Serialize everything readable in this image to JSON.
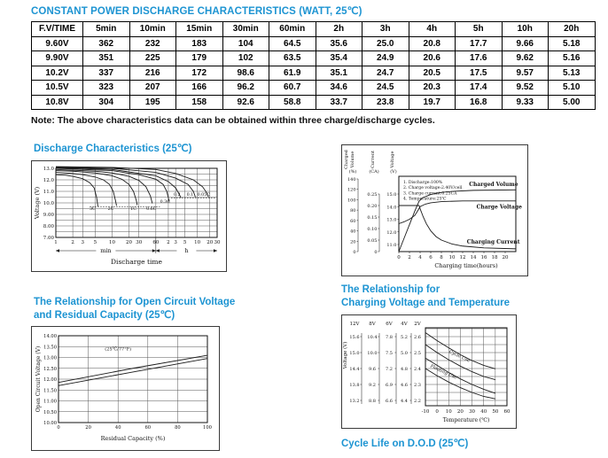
{
  "page": {
    "title": "CONSTANT POWER DISCHARGE CHARACTERISTICS (WATT, 25℃)",
    "note": "Note: The above characteristics data can be obtained within three charge/discharge cycles.",
    "accent_color": "#1d94d2"
  },
  "table": {
    "headers": [
      "F.V/TIME",
      "5min",
      "10min",
      "15min",
      "30min",
      "60min",
      "2h",
      "3h",
      "4h",
      "5h",
      "10h",
      "20h"
    ],
    "rows": [
      [
        "9.60V",
        "362",
        "232",
        "183",
        "104",
        "64.5",
        "35.6",
        "25.0",
        "20.8",
        "17.7",
        "9.66",
        "5.18"
      ],
      [
        "9.90V",
        "351",
        "225",
        "179",
        "102",
        "63.5",
        "35.4",
        "24.9",
        "20.6",
        "17.6",
        "9.62",
        "5.16"
      ],
      [
        "10.2V",
        "337",
        "216",
        "172",
        "98.6",
        "61.9",
        "35.1",
        "24.7",
        "20.5",
        "17.5",
        "9.57",
        "5.13"
      ],
      [
        "10.5V",
        "323",
        "207",
        "166",
        "96.2",
        "60.7",
        "34.6",
        "24.5",
        "20.3",
        "17.4",
        "9.52",
        "5.10"
      ],
      [
        "10.8V",
        "304",
        "195",
        "158",
        "92.6",
        "58.8",
        "33.7",
        "23.8",
        "19.7",
        "16.8",
        "9.33",
        "5.00"
      ]
    ]
  },
  "sections": {
    "discharge": {
      "title": "Discharge Characteristics (25℃)"
    },
    "ocv": {
      "title_line1": "The Relationship for Open Circuit Voltage",
      "title_line2": "and Residual Capacity (25℃)"
    },
    "charging_temp": {
      "title_line1": "The Relationship for",
      "title_line2": "Charging Voltage and Temperature"
    },
    "cycle_life": {
      "title": "Cycle Life on D.O.D (25℃)"
    }
  },
  "chart_data": [
    {
      "id": "discharge",
      "type": "line",
      "title": "Discharge Characteristics (25℃)",
      "xlabel": "Discharge time",
      "ylabel": "Voltage (V)",
      "x_unit_groups": [
        "min",
        "h"
      ],
      "y_ticks": [
        {
          "v": 13,
          "label": "13.0"
        },
        {
          "v": 12,
          "label": "12.0"
        },
        {
          "v": 11,
          "label": "11.0"
        },
        {
          "v": 10,
          "label": "10.0"
        },
        {
          "v": 9,
          "label": "9.00"
        },
        {
          "v": 8,
          "label": "8.00"
        },
        {
          "v": 7,
          "label": "7.00"
        }
      ],
      "x_ticks_min": [
        1,
        2,
        3,
        5,
        10,
        20,
        30,
        60
      ],
      "x_ticks_h": [
        2,
        3,
        5,
        10,
        20,
        30
      ],
      "ylim": [
        7,
        13.5
      ],
      "series": [
        {
          "name": "3C",
          "label_at": [
            4.5,
            9.38
          ],
          "points": [
            [
              1,
              12.45
            ],
            [
              1.5,
              12.4
            ],
            [
              2,
              12.3
            ],
            [
              3,
              12.1
            ],
            [
              4,
              11.75
            ],
            [
              4.8,
              11.3
            ],
            [
              5.3,
              10.5
            ],
            [
              5.6,
              9.7
            ]
          ]
        },
        {
          "name": "2C",
          "label_at": [
            9.5,
            9.38
          ],
          "points": [
            [
              1,
              12.65
            ],
            [
              2,
              12.55
            ],
            [
              3,
              12.45
            ],
            [
              5,
              12.25
            ],
            [
              7,
              12.0
            ],
            [
              9,
              11.6
            ],
            [
              10.5,
              11.0
            ],
            [
              11.5,
              10.2
            ],
            [
              12,
              9.75
            ]
          ]
        },
        {
          "name": "1C",
          "label_at": [
            24,
            9.38
          ],
          "points": [
            [
              1,
              12.8
            ],
            [
              2,
              12.75
            ],
            [
              5,
              12.6
            ],
            [
              10,
              12.35
            ],
            [
              15,
              12.05
            ],
            [
              20,
              11.6
            ],
            [
              24,
              11.0
            ],
            [
              27,
              10.2
            ],
            [
              28,
              9.8
            ]
          ]
        },
        {
          "name": "0.6C",
          "label_at": [
            50,
            9.38
          ],
          "points": [
            [
              1,
              12.9
            ],
            [
              5,
              12.75
            ],
            [
              10,
              12.6
            ],
            [
              20,
              12.3
            ],
            [
              30,
              11.95
            ],
            [
              40,
              11.4
            ],
            [
              48,
              10.6
            ],
            [
              52,
              9.95
            ]
          ]
        },
        {
          "name": "0.3C",
          "label_at": [
            100,
            10.0
          ],
          "points": [
            [
              1,
              13.0
            ],
            [
              10,
              12.8
            ],
            [
              30,
              12.45
            ],
            [
              60,
              12.05
            ],
            [
              90,
              11.6
            ],
            [
              110,
              11.0
            ],
            [
              120,
              10.45
            ],
            [
              126,
              10.1
            ]
          ]
        },
        {
          "name": "0.2",
          "label_at": [
            195,
            10.62
          ],
          "points": [
            [
              1,
              13.05
            ],
            [
              10,
              12.9
            ],
            [
              60,
              12.35
            ],
            [
              120,
              11.85
            ],
            [
              180,
              11.3
            ],
            [
              220,
              10.75
            ],
            [
              240,
              10.45
            ]
          ]
        },
        {
          "name": "0.1",
          "label_at": [
            400,
            10.62
          ],
          "points": [
            [
              1,
              13.1
            ],
            [
              10,
              13.0
            ],
            [
              60,
              12.65
            ],
            [
              180,
              12.15
            ],
            [
              360,
              11.6
            ],
            [
              480,
              11.0
            ],
            [
              540,
              10.5
            ]
          ]
        },
        {
          "name": "0.05C",
          "label_at": [
            850,
            10.62
          ],
          "points": [
            [
              1,
              13.15
            ],
            [
              10,
              13.08
            ],
            [
              60,
              12.9
            ],
            [
              180,
              12.55
            ],
            [
              480,
              12.0
            ],
            [
              800,
              11.4
            ],
            [
              1000,
              10.9
            ],
            [
              1120,
              10.5
            ]
          ]
        }
      ],
      "guides": [
        {
          "v": 9.65,
          "from": 4,
          "to": 75
        },
        {
          "v": 10.42,
          "from": 140,
          "to": 1600
        }
      ]
    },
    {
      "id": "charge",
      "type": "line",
      "xlabel": "Charging time(hours)",
      "x_ticks": [
        0,
        2,
        4,
        6,
        8,
        10,
        12,
        14,
        16,
        18,
        20
      ],
      "xlim": [
        0,
        22
      ],
      "axes": [
        {
          "key": "volume",
          "word": "Charged Volume",
          "unit": "(%)",
          "ticks": [
            0,
            20,
            40,
            60,
            80,
            100,
            120,
            140
          ],
          "tick_labels": [
            "0",
            "20",
            "40",
            "60",
            "80",
            "100",
            "120",
            "140"
          ]
        },
        {
          "key": "current",
          "word": "Current",
          "unit": "(CA)",
          "ticks": [
            0,
            0.05,
            0.1,
            0.15,
            0.2,
            0.25
          ],
          "tick_labels": [
            "0",
            "0.05",
            "0.10",
            "0.15",
            "0.20",
            "0.25"
          ]
        },
        {
          "key": "voltage",
          "word": "Voltage",
          "unit": "(V)",
          "ticks": [
            11,
            12,
            13,
            14,
            15
          ],
          "tick_labels": [
            "11.0",
            "12.0",
            "13.0",
            "14.0",
            "15.0"
          ]
        }
      ],
      "notes": [
        "1. Discharge:100%",
        "2. Charge voltage:2.40V/cell",
        "3. Charge current:0.25CA",
        "4. Temperature:25℃"
      ],
      "series": [
        {
          "name": "Charged Volume",
          "axis": "volume",
          "label_at": [
            13.2,
            126
          ],
          "points": [
            [
              0,
              0
            ],
            [
              1,
              26
            ],
            [
              2,
              52
            ],
            [
              3,
              78
            ],
            [
              3.8,
              97
            ],
            [
              4.5,
              104
            ],
            [
              6,
              110
            ],
            [
              8,
              114
            ],
            [
              10,
              116
            ],
            [
              14,
              118
            ],
            [
              22,
              119
            ]
          ]
        },
        {
          "name": "Charge Voltage",
          "axis": "voltage",
          "label_at": [
            14.6,
            13.85
          ],
          "points": [
            [
              0,
              12.65
            ],
            [
              1,
              12.8
            ],
            [
              2,
              13.0
            ],
            [
              3,
              13.3
            ],
            [
              3.6,
              13.7
            ],
            [
              4,
              14.0
            ],
            [
              5,
              14.2
            ],
            [
              6,
              14.3
            ],
            [
              8,
              14.4
            ],
            [
              12,
              14.45
            ],
            [
              22,
              14.45
            ]
          ]
        },
        {
          "name": "Charging Current",
          "axis": "current",
          "label_at": [
            12.8,
            0.035
          ],
          "points": [
            [
              0,
              0.2
            ],
            [
              3.8,
              0.2
            ],
            [
              4.1,
              0.18
            ],
            [
              4.6,
              0.15
            ],
            [
              5.2,
              0.12
            ],
            [
              6,
              0.09
            ],
            [
              7,
              0.065
            ],
            [
              8,
              0.05
            ],
            [
              10,
              0.033
            ],
            [
              12,
              0.024
            ],
            [
              16,
              0.016
            ],
            [
              22,
              0.012
            ]
          ]
        }
      ]
    },
    {
      "id": "ocv",
      "type": "line",
      "xlabel": "Residual Capacity (%)",
      "ylabel": "Open Circuit Voltage (V)",
      "annotation": "(25℃/77°F)",
      "x_ticks": [
        0,
        20,
        40,
        60,
        80,
        100
      ],
      "y_ticks": [
        {
          "v": 14,
          "label": "14.00"
        },
        {
          "v": 13.5,
          "label": "13.50"
        },
        {
          "v": 13,
          "label": "13.00"
        },
        {
          "v": 12.5,
          "label": "12.50"
        },
        {
          "v": 12,
          "label": "12.00"
        },
        {
          "v": 11.5,
          "label": "11.50"
        },
        {
          "v": 11,
          "label": "11.00"
        },
        {
          "v": 10.5,
          "label": "10.50"
        },
        {
          "v": 10,
          "label": "10.00"
        }
      ],
      "series": [
        {
          "name": "upper",
          "points": [
            [
              0,
              11.85
            ],
            [
              50,
              12.5
            ],
            [
              100,
              13.1
            ]
          ]
        },
        {
          "name": "lower",
          "points": [
            [
              0,
              11.7
            ],
            [
              50,
              12.33
            ],
            [
              100,
              12.95
            ]
          ]
        }
      ]
    },
    {
      "id": "charging_temp",
      "type": "line",
      "xlabel": "Temperature (℃)",
      "ylabel": "Voltage (V)",
      "x_ticks": [
        -10,
        0,
        10,
        20,
        30,
        40,
        50,
        60
      ],
      "scale_headers": [
        "12V",
        "8V",
        "6V",
        "4V",
        "2V"
      ],
      "scales": [
        [
          "15.6",
          "15.0",
          "14.4",
          "13.8",
          "13.2"
        ],
        [
          "10.4",
          "10.0",
          "9.6",
          "9.2",
          "8.8"
        ],
        [
          "7.8",
          "7.5",
          "7.2",
          "6.9",
          "6.6"
        ],
        [
          "5.2",
          "5.0",
          "4.8",
          "4.6",
          "4.4"
        ],
        [
          "2.6",
          "2.5",
          "2.4",
          "2.3",
          "2.2"
        ]
      ],
      "series": [
        {
          "name": "Cycle Use upper",
          "points": [
            [
              -10,
              2.625
            ],
            [
              0,
              2.575
            ],
            [
              10,
              2.53
            ],
            [
              20,
              2.487
            ],
            [
              30,
              2.45
            ],
            [
              40,
              2.42
            ],
            [
              50,
              2.398
            ]
          ]
        },
        {
          "name": "Cycle Use lower",
          "points": [
            [
              -10,
              2.55
            ],
            [
              0,
              2.5
            ],
            [
              10,
              2.455
            ],
            [
              20,
              2.415
            ],
            [
              30,
              2.38
            ],
            [
              40,
              2.35
            ],
            [
              50,
              2.33
            ]
          ]
        },
        {
          "name": "Floating Use upper",
          "points": [
            [
              -10,
              2.465
            ],
            [
              0,
              2.42
            ],
            [
              10,
              2.375
            ],
            [
              20,
              2.335
            ],
            [
              30,
              2.3
            ],
            [
              40,
              2.27
            ],
            [
              50,
              2.245
            ]
          ]
        },
        {
          "name": "Floating Use lower",
          "points": [
            [
              -10,
              2.4
            ],
            [
              0,
              2.355
            ],
            [
              10,
              2.315
            ],
            [
              20,
              2.28
            ],
            [
              30,
              2.25
            ],
            [
              40,
              2.225
            ],
            [
              50,
              2.21
            ]
          ]
        }
      ],
      "curve_labels": [
        {
          "text": "Cycle Use",
          "at": [
            10,
            2.5
          ],
          "angle": 25
        },
        {
          "text": "Floating Use",
          "at": [
            -6,
            2.41
          ],
          "angle": 25
        }
      ]
    }
  ]
}
